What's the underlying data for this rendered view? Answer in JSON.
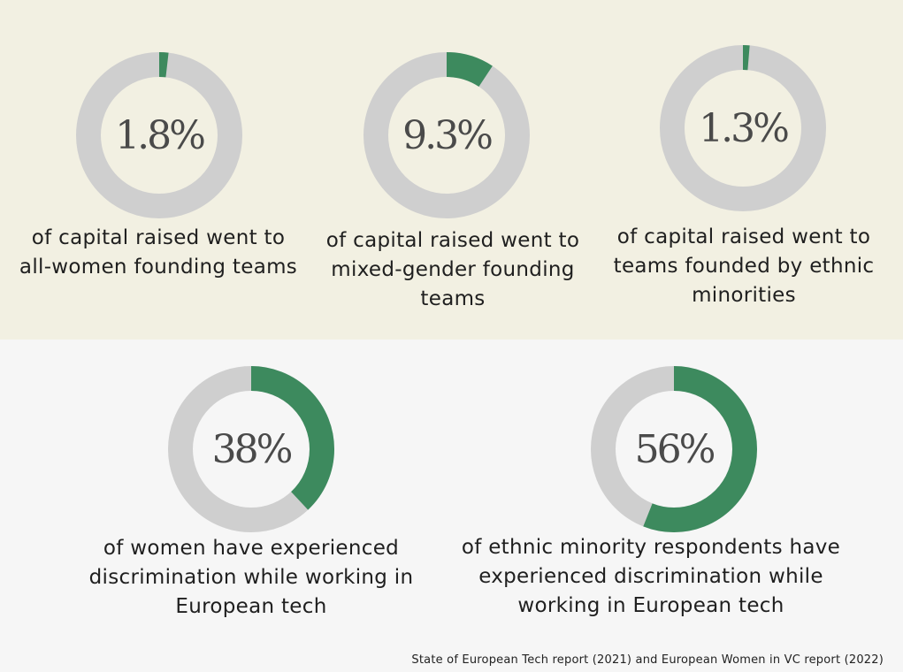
{
  "colors": {
    "fill": "#3d8a5e",
    "track": "#cfcfcf",
    "top_band": "#f2f0e2",
    "bottom_band": "#f6f6f6",
    "text": "#1f1f1f",
    "percent_text": "#4a4a4a"
  },
  "chart_data": [
    {
      "type": "pie",
      "value": 1.8,
      "label": "1.8%",
      "caption": "of capital raised went to all-women founding teams"
    },
    {
      "type": "pie",
      "value": 9.3,
      "label": "9.3%",
      "caption": "of capital raised went to mixed-gender founding teams"
    },
    {
      "type": "pie",
      "value": 1.3,
      "label": "1.3%",
      "caption": "of capital raised went to teams founded by ethnic minorities"
    },
    {
      "type": "pie",
      "value": 38,
      "label": "38%",
      "caption": "of women have experienced discrimination while working in European tech"
    },
    {
      "type": "pie",
      "value": 56,
      "label": "56%",
      "caption": "of ethnic minority respondents have experienced discrimination while working in European tech"
    }
  ],
  "source": "State of European Tech report (2021) and European Women in VC report (2022)"
}
